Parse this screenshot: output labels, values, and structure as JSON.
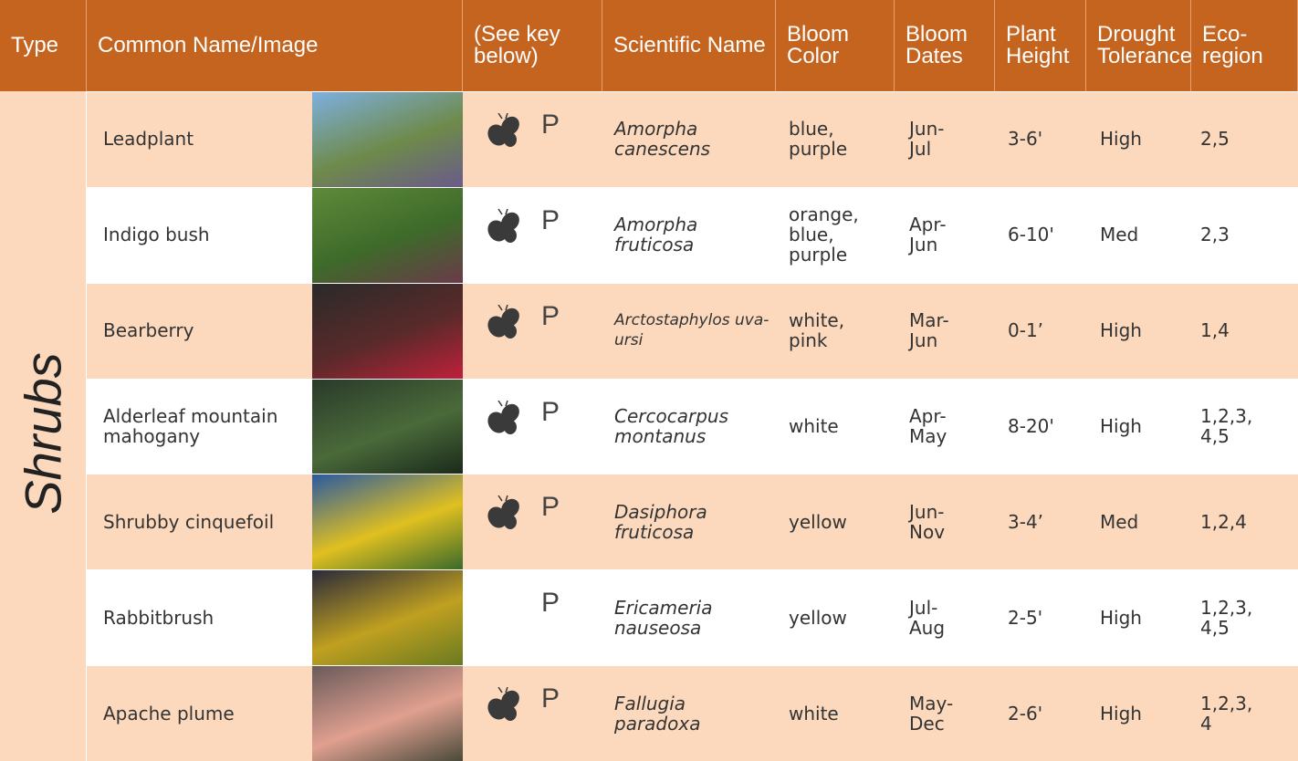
{
  "header": [
    "Type",
    "Common Name/Image",
    "(See key below)",
    "Scientific Name",
    "Bloom Color",
    "Bloom Dates",
    "Plant Height",
    "Drought Tolerance",
    "Eco-region"
  ],
  "type": "Shrubs",
  "rows": [
    {
      "common_name": "Leadplant",
      "butterfly": true,
      "key": "P",
      "scientific_name": "Amorpha canescens",
      "bloom_color": "blue, purple",
      "bloom_dates": "Jun-Jul",
      "plant_height": "3-6'",
      "drought_tolerance": "High",
      "ecoregion": "2,5"
    },
    {
      "common_name": "Indigo bush",
      "butterfly": true,
      "key": "P",
      "scientific_name": "Amorpha fruticosa",
      "bloom_color": "orange, blue, purple",
      "bloom_dates": "Apr-Jun",
      "plant_height": "6-10'",
      "drought_tolerance": "Med",
      "ecoregion": "2,3"
    },
    {
      "common_name": "Bearberry",
      "butterfly": true,
      "key": "P",
      "scientific_name": "Arctostaphylos uva-ursi",
      "bloom_color": "white, pink",
      "bloom_dates": "Mar-Jun",
      "plant_height": "0-1’",
      "drought_tolerance": "High",
      "ecoregion": "1,4"
    },
    {
      "common_name": "Alderleaf mountain mahogany",
      "butterfly": true,
      "key": "P",
      "scientific_name": "Cercocarpus montanus",
      "bloom_color": "white",
      "bloom_dates": "Apr-May",
      "plant_height": "8-20'",
      "drought_tolerance": "High",
      "ecoregion": "1,2,3,4,5"
    },
    {
      "common_name": "Shrubby cinquefoil",
      "butterfly": true,
      "key": "P",
      "scientific_name": "Dasiphora fruticosa",
      "bloom_color": "yellow",
      "bloom_dates": "Jun-Nov",
      "plant_height": "3-4’",
      "drought_tolerance": "Med",
      "ecoregion": "1,2,4"
    },
    {
      "common_name": "Rabbitbrush",
      "butterfly": false,
      "key": "P",
      "scientific_name": "Ericameria nauseosa",
      "bloom_color": "yellow",
      "bloom_dates": "Jul-Aug",
      "plant_height": "2-5'",
      "drought_tolerance": "High",
      "ecoregion": "1,2,3,4,5"
    },
    {
      "common_name": "Apache plume",
      "butterfly": true,
      "key": "P",
      "scientific_name": "Fallugia paradoxa",
      "bloom_color": "white",
      "bloom_dates": "May-Dec",
      "plant_height": "2-6'",
      "drought_tolerance": "High",
      "ecoregion": "1,2,3,4"
    }
  ]
}
